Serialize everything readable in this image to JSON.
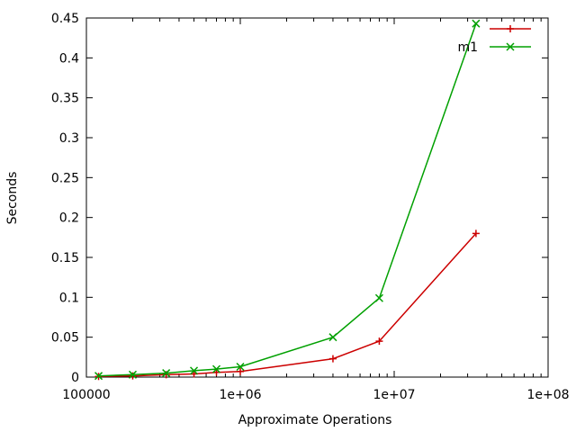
{
  "chart_data": {
    "type": "line",
    "title": "",
    "xlabel": "Approximate Operations",
    "ylabel": "Seconds",
    "x_scale": "log",
    "xlim": [
      100000,
      100000000
    ],
    "ylim": [
      0,
      0.45
    ],
    "x_ticks": [
      {
        "value": 100000,
        "label": "100000"
      },
      {
        "value": 1000000,
        "label": "1e+06"
      },
      {
        "value": 10000000,
        "label": "1e+07"
      },
      {
        "value": 100000000,
        "label": "1e+08"
      }
    ],
    "y_ticks": [
      {
        "value": 0,
        "label": "0"
      },
      {
        "value": 0.05,
        "label": "0.05"
      },
      {
        "value": 0.1,
        "label": "0.1"
      },
      {
        "value": 0.15,
        "label": "0.15"
      },
      {
        "value": 0.2,
        "label": "0.2"
      },
      {
        "value": 0.25,
        "label": "0.25"
      },
      {
        "value": 0.3,
        "label": "0.3"
      },
      {
        "value": 0.35,
        "label": "0.35"
      },
      {
        "value": 0.4,
        "label": "0.4"
      },
      {
        "value": 0.45,
        "label": "0.45"
      }
    ],
    "grid": false,
    "legend_position": "top-right",
    "series": [
      {
        "name": "",
        "color": "#cc0000",
        "marker": "plus",
        "points": [
          {
            "x": 120000,
            "y": 0.0008
          },
          {
            "x": 200000,
            "y": 0.0015
          },
          {
            "x": 330000,
            "y": 0.003
          },
          {
            "x": 500000,
            "y": 0.004
          },
          {
            "x": 700000,
            "y": 0.006
          },
          {
            "x": 1000000,
            "y": 0.007
          },
          {
            "x": 4000000,
            "y": 0.023
          },
          {
            "x": 8000000,
            "y": 0.045
          },
          {
            "x": 34000000,
            "y": 0.18
          }
        ]
      },
      {
        "name": "m1",
        "color": "#00a000",
        "marker": "cross",
        "points": [
          {
            "x": 120000,
            "y": 0.0015
          },
          {
            "x": 200000,
            "y": 0.003
          },
          {
            "x": 330000,
            "y": 0.005
          },
          {
            "x": 500000,
            "y": 0.008
          },
          {
            "x": 700000,
            "y": 0.01
          },
          {
            "x": 1000000,
            "y": 0.013
          },
          {
            "x": 4000000,
            "y": 0.05
          },
          {
            "x": 8000000,
            "y": 0.099
          },
          {
            "x": 34000000,
            "y": 0.443
          }
        ]
      }
    ]
  }
}
